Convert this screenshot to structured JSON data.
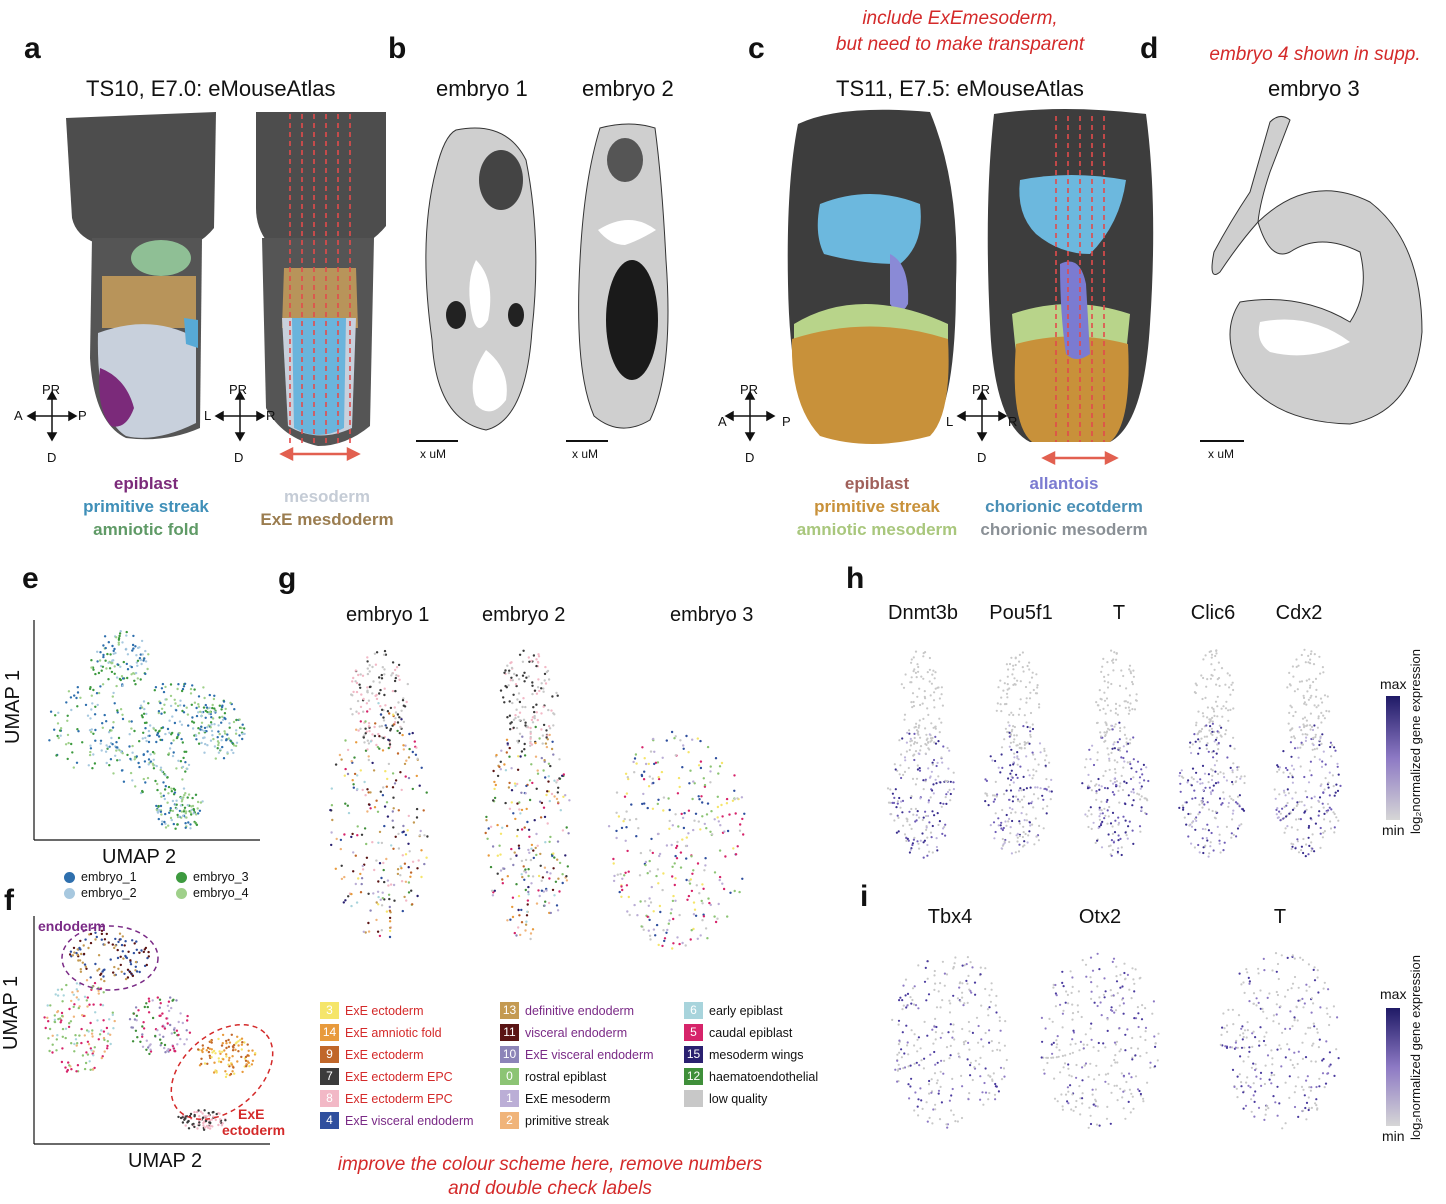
{
  "panels": {
    "a": {
      "label": "a",
      "title": "TS10, E7.0: eMouseAtlas",
      "axes_left": {
        "top": "PR",
        "left": "A",
        "right": "P",
        "bottom": "D"
      },
      "axes_right": {
        "top": "PR",
        "left": "L",
        "right": "R",
        "bottom": "D"
      },
      "legend_left": [
        {
          "text": "epiblast",
          "color": "#7b2a7a"
        },
        {
          "text": "primitive streak",
          "color": "#3f8fb8"
        },
        {
          "text": "amniotic fold",
          "color": "#5f9a66"
        }
      ],
      "legend_right": [
        {
          "text": "mesoderm",
          "color": "#c5ccd6"
        },
        {
          "text": "ExE mesdoderm",
          "color": "#9b7d50"
        }
      ]
    },
    "b": {
      "label": "b",
      "embryo1": "embryo 1",
      "embryo2": "embryo 2",
      "scale1": "x uM",
      "scale2": "x uM"
    },
    "c": {
      "label": "c",
      "note": [
        "include ExEmesoderm,",
        "but need to make transparent"
      ],
      "title": "TS11, E7.5: eMouseAtlas",
      "axes_left": {
        "top": "PR",
        "left": "A",
        "right": "P",
        "bottom": "D"
      },
      "axes_right": {
        "top": "PR",
        "left": "L",
        "right": "R",
        "bottom": "D"
      },
      "legend_left": [
        {
          "text": "epiblast",
          "color": "#a0605a"
        },
        {
          "text": "primitive streak",
          "color": "#c8913a"
        },
        {
          "text": "amniotic mesoderm",
          "color": "#a9c77d"
        }
      ],
      "legend_right": [
        {
          "text": "allantois",
          "color": "#7b7bd1"
        },
        {
          "text": "chorionic ecotderm",
          "color": "#4a8fb5"
        },
        {
          "text": "chorionic mesoderm",
          "color": "#8a9096"
        }
      ]
    },
    "d": {
      "label": "d",
      "note": "embryo 4 shown in supp.",
      "embryo": "embryo 3",
      "scale": "x uM"
    },
    "e": {
      "label": "e",
      "ylabel": "UMAP 1",
      "xlabel": "UMAP 2",
      "legend": [
        {
          "text": "embryo_1",
          "color": "#2e6fad"
        },
        {
          "text": "embryo_2",
          "color": "#a7c8df"
        },
        {
          "text": "embryo_3",
          "color": "#3d9a3f"
        },
        {
          "text": "embryo_4",
          "color": "#9fd08a"
        }
      ]
    },
    "f": {
      "label": "f",
      "ylabel": "UMAP 1",
      "xlabel": "UMAP 2",
      "annotation1": "endoderm",
      "annotation2a": "ExE",
      "annotation2b": "ectoderm"
    },
    "g": {
      "label": "g",
      "embryo1": "embryo 1",
      "embryo2": "embryo 2",
      "embryo3": "embryo 3",
      "note": [
        "improve the colour scheme here, remove numbers",
        "and double check labels"
      ],
      "clusters_col1": [
        {
          "num": "3",
          "text": "ExE ectoderm",
          "color": "#f5e56a",
          "textcolor": "#d42a2a"
        },
        {
          "num": "14",
          "text": "ExE amniotic fold",
          "color": "#e89a3c",
          "textcolor": "#d42a2a"
        },
        {
          "num": "9",
          "text": "ExE ectoderm",
          "color": "#c0672a",
          "textcolor": "#d42a2a"
        },
        {
          "num": "7",
          "text": "ExE ectoderm EPC",
          "color": "#3b3b3b",
          "textcolor": "#d42a2a"
        },
        {
          "num": "8",
          "text": "ExE ectoderm EPC",
          "color": "#f2b8c6",
          "textcolor": "#d42a2a"
        },
        {
          "num": "4",
          "text": "ExE visceral endoderm",
          "color": "#2f4f9e",
          "textcolor": "#7a2a86"
        }
      ],
      "clusters_col2": [
        {
          "num": "13",
          "text": "definitive endoderm",
          "color": "#c49a52",
          "textcolor": "#7a2a86"
        },
        {
          "num": "11",
          "text": "visceral endoderm",
          "color": "#5a1414",
          "textcolor": "#7a2a86"
        },
        {
          "num": "10",
          "text": "ExE visceral endoderm",
          "color": "#8c84b8",
          "textcolor": "#7a2a86"
        },
        {
          "num": "0",
          "text": "rostral epiblast",
          "color": "#8cc474",
          "textcolor": "#111111"
        },
        {
          "num": "1",
          "text": "ExE mesoderm",
          "color": "#bbaed6",
          "textcolor": "#111111"
        },
        {
          "num": "2",
          "text": "primitive streak",
          "color": "#f0b47a",
          "textcolor": "#111111"
        }
      ],
      "clusters_col3": [
        {
          "num": "6",
          "text": "early epiblast",
          "color": "#a8d4dc",
          "textcolor": "#111111"
        },
        {
          "num": "5",
          "text": "caudal epiblast",
          "color": "#d6246a",
          "textcolor": "#111111"
        },
        {
          "num": "15",
          "text": "mesoderm wings",
          "color": "#2a2070",
          "textcolor": "#111111"
        },
        {
          "num": "12",
          "text": "haematoendothelial",
          "color": "#3f8f3a",
          "textcolor": "#111111"
        },
        {
          "num": "",
          "text": "low quality",
          "color": "#c8c8c8",
          "textcolor": "#111111"
        }
      ]
    },
    "h": {
      "label": "h",
      "genes": [
        "Dnmt3b",
        "Pou5f1",
        "T",
        "Clic6",
        "Cdx2"
      ],
      "colorbar": {
        "max": "max",
        "min": "min",
        "caption": "log₂normalized gene expression"
      }
    },
    "i": {
      "label": "i",
      "genes": [
        "Tbx4",
        "Otx2",
        "T"
      ],
      "colorbar": {
        "max": "max",
        "min": "min",
        "caption": "log₂normalized gene expression"
      }
    }
  }
}
